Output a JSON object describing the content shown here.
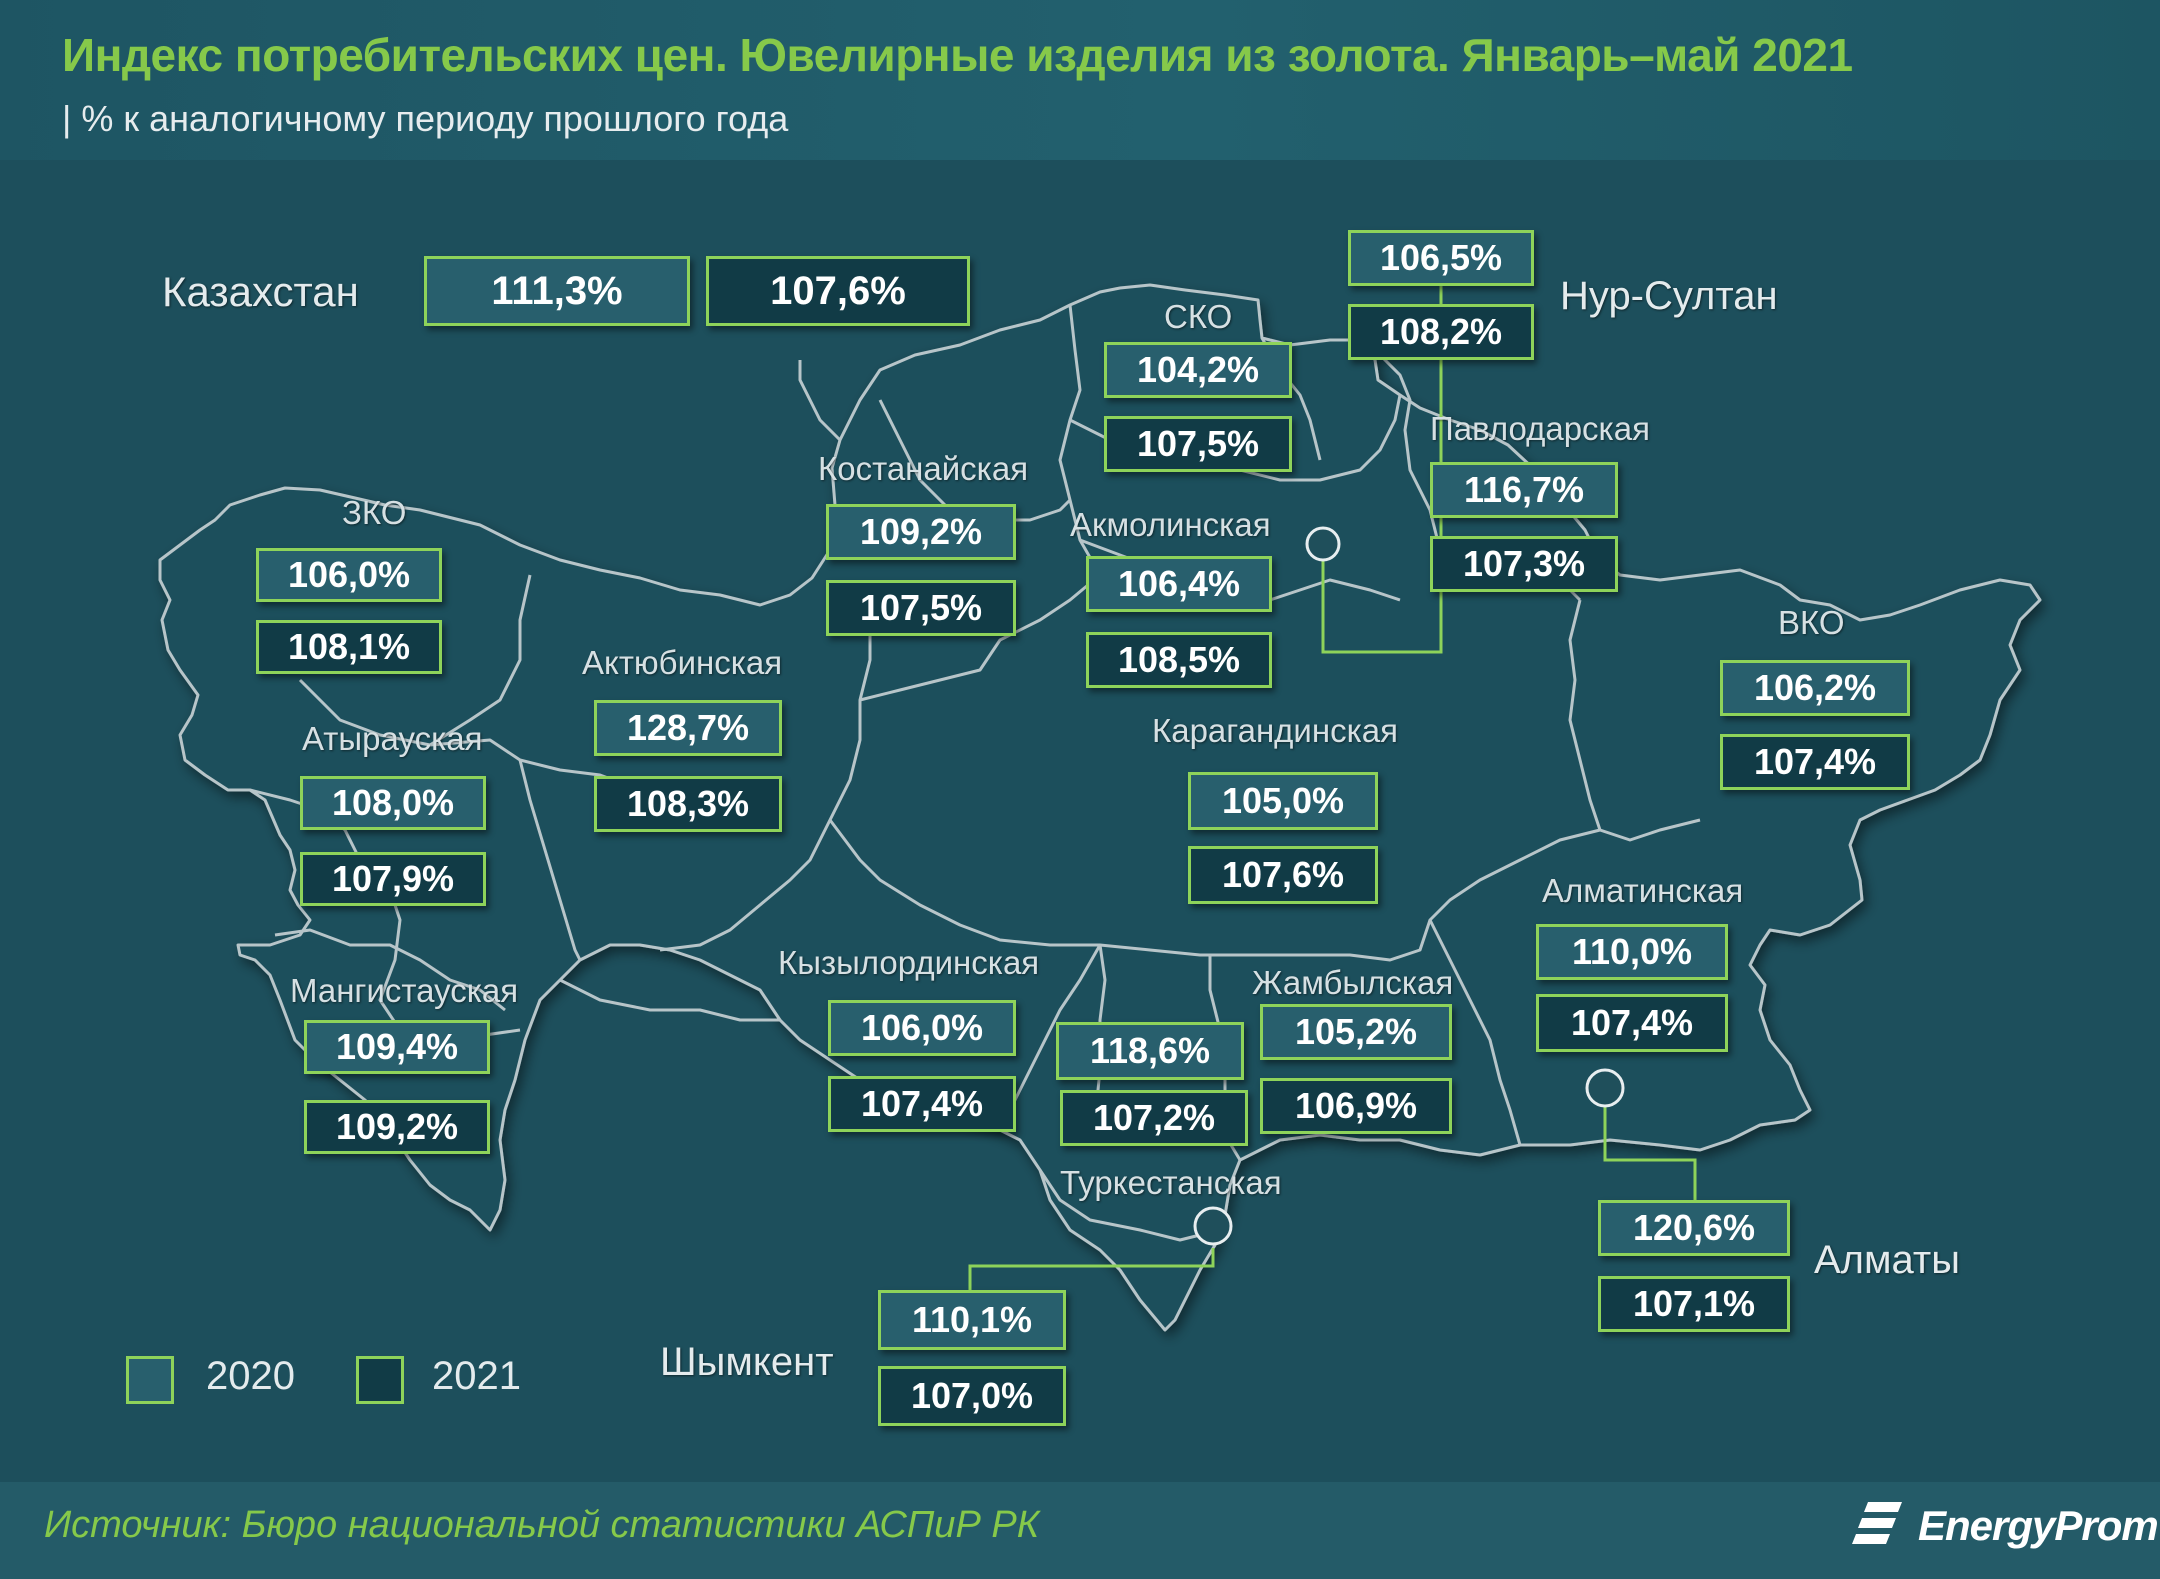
{
  "header": {
    "title": "Индекс потребительских цен. Ювелирные изделия из золота. Январь–май 2021",
    "subtitle": "| % к аналогичному периоду прошлого года"
  },
  "colors": {
    "accent_green": "#8ed35a",
    "title_green": "#86c94a",
    "box_2020": "#285f6d",
    "box_2021": "#113b46",
    "region_fill": "#1f4f5b",
    "border_line": "#b7c5c9"
  },
  "legend": [
    {
      "year": "2020",
      "style": "light"
    },
    {
      "year": "2021",
      "style": "dark"
    }
  ],
  "country": {
    "name": "Казахстан",
    "v2020": "111,3%",
    "v2021": "107,6%"
  },
  "regions": [
    {
      "id": "zko",
      "name": "ЗКО",
      "v2020": "106,0%",
      "v2021": "108,1%"
    },
    {
      "id": "atyrau",
      "name": "Атырауская",
      "v2020": "108,0%",
      "v2021": "107,9%"
    },
    {
      "id": "mangystau",
      "name": "Мангистауская",
      "v2020": "109,4%",
      "v2021": "109,2%"
    },
    {
      "id": "aktobe",
      "name": "Актюбинская",
      "v2020": "128,7%",
      "v2021": "108,3%"
    },
    {
      "id": "kostanay",
      "name": "Костанайская",
      "v2020": "109,2%",
      "v2021": "107,5%"
    },
    {
      "id": "sko",
      "name": "СКО",
      "v2020": "104,2%",
      "v2021": "107,5%"
    },
    {
      "id": "akmola",
      "name": "Акмолинская",
      "v2020": "106,4%",
      "v2021": "108,5%"
    },
    {
      "id": "nursultan",
      "name": "Нур-Султан",
      "v2020": "106,5%",
      "v2021": "108,2%"
    },
    {
      "id": "pavlodar",
      "name": "Павлодарская",
      "v2020": "116,7%",
      "v2021": "107,3%"
    },
    {
      "id": "vko",
      "name": "ВКО",
      "v2020": "106,2%",
      "v2021": "107,4%"
    },
    {
      "id": "karaganda",
      "name": "Карагандинская",
      "v2020": "105,0%",
      "v2021": "107,6%"
    },
    {
      "id": "kyzylorda",
      "name": "Кызылординская",
      "v2020": "106,0%",
      "v2021": "107,4%"
    },
    {
      "id": "turkestan",
      "name": "Туркестанская",
      "v2020": "118,6%",
      "v2021": "107,2%"
    },
    {
      "id": "zhambyl",
      "name": "Жамбылская",
      "v2020": "105,2%",
      "v2021": "106,9%"
    },
    {
      "id": "almaty_obl",
      "name": "Алматинская",
      "v2020": "110,0%",
      "v2021": "107,4%"
    },
    {
      "id": "almaty",
      "name": "Алматы",
      "v2020": "120,6%",
      "v2021": "107,1%"
    },
    {
      "id": "shymkent",
      "name": "Шымкент",
      "v2020": "110,1%",
      "v2021": "107,0%"
    }
  ],
  "footer": {
    "source": "Источник: Бюро национальной  статистики  АСПиР РК",
    "logo_text": "EnergyProm"
  }
}
